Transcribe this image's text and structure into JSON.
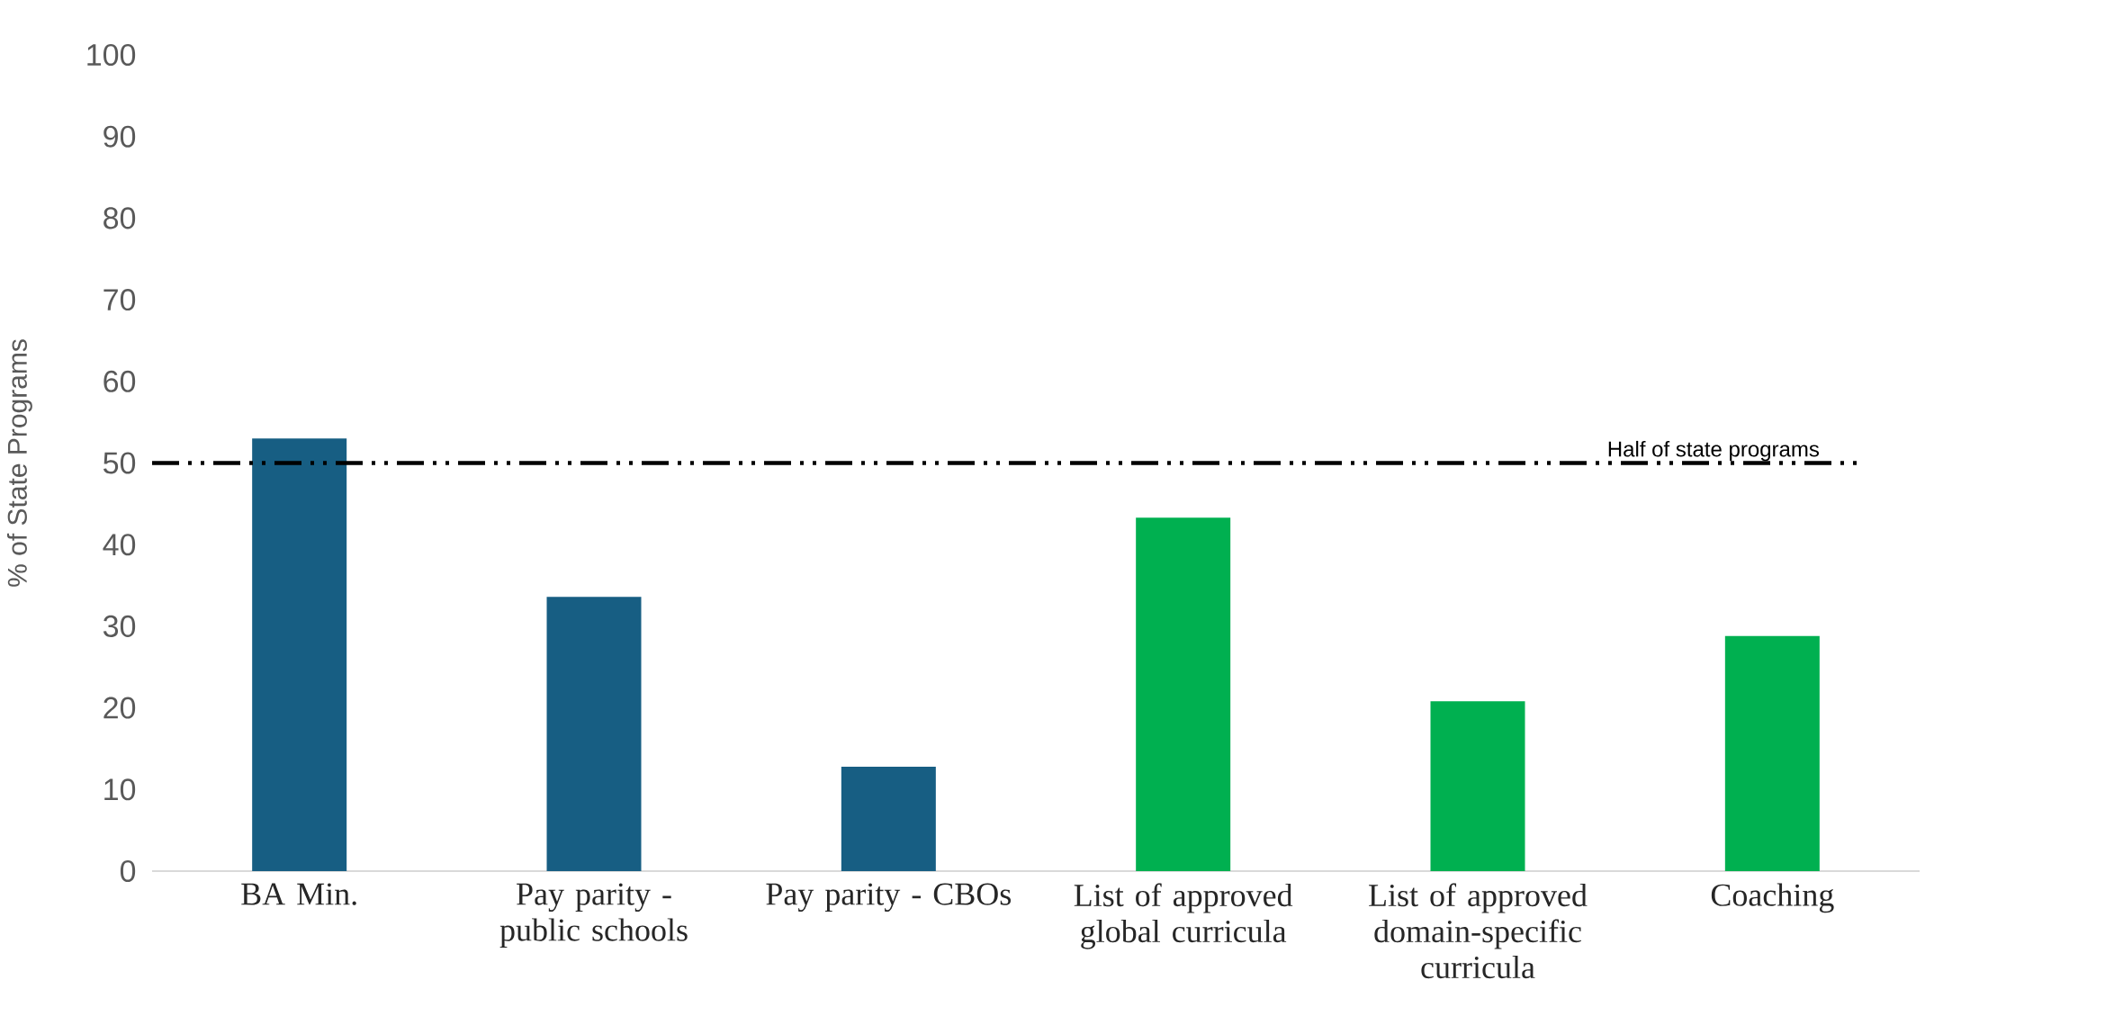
{
  "chart_data": {
    "type": "bar",
    "ylabel": "% of State Programs",
    "categories": [
      "BA Min.",
      "Pay parity - public schools",
      "Pay parity - CBOs",
      "List of approved global curricula",
      "List of approved domain-specific curricula",
      "Coaching"
    ],
    "values": [
      53,
      33.6,
      12.8,
      43.3,
      20.8,
      28.8
    ],
    "colors": [
      "#175e83",
      "#175e83",
      "#175e83",
      "#00b050",
      "#00b050",
      "#00b050"
    ],
    "ylim": [
      0,
      100
    ],
    "yticks": [
      0,
      10,
      20,
      30,
      40,
      50,
      60,
      70,
      80,
      90,
      100
    ],
    "ref_lines": [
      {
        "axis": "y",
        "value": 50,
        "label": "Half of state programs",
        "color": "#000000",
        "line_style": "dashed"
      }
    ]
  }
}
